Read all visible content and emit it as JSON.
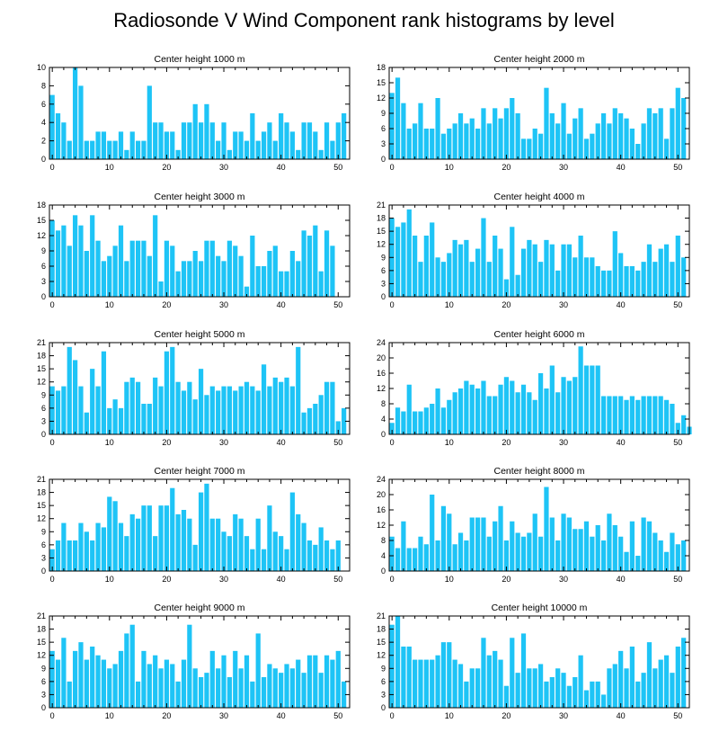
{
  "figure": {
    "title": "Radiosonde V Wind Component rank histograms by level",
    "bar_color": "#1ec4f6"
  },
  "chart_data": [
    {
      "type": "bar",
      "title": "Center height 1000 m",
      "xlim": [
        -0.5,
        52
      ],
      "xticks": [
        0,
        10,
        20,
        30,
        40,
        50
      ],
      "ylim": [
        0,
        10
      ],
      "yticks": [
        0,
        2,
        4,
        6,
        8,
        10
      ],
      "values": [
        7,
        5,
        4,
        2,
        10,
        8,
        2,
        2,
        3,
        3,
        2,
        2,
        3,
        1,
        3,
        2,
        2,
        8,
        4,
        4,
        3,
        3,
        1,
        4,
        4,
        6,
        4,
        6,
        4,
        2,
        4,
        1,
        3,
        3,
        2,
        5,
        2,
        3,
        4,
        2,
        5,
        4,
        3,
        1,
        4,
        4,
        3,
        1,
        4,
        2,
        4,
        5
      ]
    },
    {
      "type": "bar",
      "title": "Center height 2000 m",
      "xlim": [
        -0.5,
        52
      ],
      "xticks": [
        0,
        10,
        20,
        30,
        40,
        50
      ],
      "ylim": [
        0,
        18
      ],
      "yticks": [
        0,
        3,
        6,
        9,
        12,
        15,
        18
      ],
      "values": [
        13,
        16,
        11,
        6,
        7,
        11,
        6,
        6,
        12,
        5,
        6,
        7,
        9,
        7,
        8,
        6,
        10,
        7,
        10,
        8,
        10,
        12,
        9,
        4,
        4,
        6,
        5,
        14,
        9,
        7,
        11,
        5,
        8,
        10,
        4,
        5,
        7,
        9,
        7,
        10,
        9,
        8,
        6,
        3,
        7,
        10,
        9,
        10,
        4,
        10,
        14,
        12
      ]
    },
    {
      "type": "bar",
      "title": "Center height 3000 m",
      "xlim": [
        -0.5,
        52
      ],
      "xticks": [
        0,
        10,
        20,
        30,
        40,
        50
      ],
      "ylim": [
        0,
        18
      ],
      "yticks": [
        0,
        3,
        6,
        9,
        12,
        15,
        18
      ],
      "values": [
        15,
        13,
        14,
        10,
        16,
        14,
        9,
        16,
        11,
        7,
        8,
        10,
        14,
        7,
        11,
        11,
        11,
        8,
        16,
        3,
        11,
        10,
        5,
        7,
        7,
        9,
        7,
        11,
        11,
        8,
        7,
        11,
        10,
        8,
        2,
        12,
        6,
        6,
        9,
        10,
        5,
        5,
        9,
        7,
        13,
        12,
        14,
        5,
        13,
        10
      ]
    },
    {
      "type": "bar",
      "title": "Center height 4000 m",
      "xlim": [
        -0.5,
        52
      ],
      "xticks": [
        0,
        10,
        20,
        30,
        40,
        50
      ],
      "ylim": [
        0,
        21
      ],
      "yticks": [
        0,
        3,
        6,
        9,
        12,
        15,
        18,
        21
      ],
      "values": [
        18,
        16,
        17,
        20,
        14,
        8,
        14,
        17,
        9,
        8,
        10,
        13,
        12,
        13,
        8,
        11,
        18,
        8,
        14,
        11,
        4,
        16,
        5,
        11,
        13,
        12,
        8,
        13,
        12,
        6,
        12,
        12,
        9,
        14,
        9,
        9,
        7,
        6,
        6,
        15,
        10,
        7,
        7,
        6,
        8,
        12,
        8,
        11,
        12,
        8,
        14,
        9
      ]
    },
    {
      "type": "bar",
      "title": "Center height 5000 m",
      "xlim": [
        -0.5,
        52
      ],
      "xticks": [
        0,
        10,
        20,
        30,
        40,
        50
      ],
      "ylim": [
        0,
        21
      ],
      "yticks": [
        0,
        3,
        6,
        9,
        12,
        15,
        18,
        21
      ],
      "values": [
        11,
        10,
        11,
        20,
        17,
        11,
        5,
        15,
        11,
        19,
        6,
        8,
        6,
        12,
        13,
        12,
        7,
        7,
        13,
        11,
        19,
        20,
        12,
        10,
        12,
        8,
        15,
        9,
        11,
        10,
        11,
        11,
        10,
        11,
        12,
        11,
        10,
        16,
        11,
        13,
        12,
        13,
        11,
        20,
        5,
        6,
        7,
        9,
        12,
        12,
        3,
        6
      ]
    },
    {
      "type": "bar",
      "title": "Center height 6000 m",
      "xlim": [
        -0.5,
        52
      ],
      "xticks": [
        0,
        10,
        20,
        30,
        40,
        50
      ],
      "ylim": [
        0,
        24
      ],
      "yticks": [
        0,
        4,
        8,
        12,
        16,
        20,
        24
      ],
      "values": [
        3,
        7,
        6,
        13,
        6,
        6,
        7,
        8,
        12,
        7,
        9,
        11,
        12,
        14,
        13,
        12,
        14,
        10,
        10,
        13,
        15,
        14,
        11,
        13,
        11,
        9,
        16,
        12,
        18,
        11,
        15,
        14,
        15,
        23,
        18,
        18,
        18,
        10,
        10,
        10,
        10,
        9,
        10,
        9,
        10,
        10,
        10,
        10,
        9,
        8,
        3,
        5,
        2
      ]
    },
    {
      "type": "bar",
      "title": "Center height 7000 m",
      "xlim": [
        -0.5,
        52
      ],
      "xticks": [
        0,
        10,
        20,
        30,
        40,
        50
      ],
      "ylim": [
        0,
        21
      ],
      "yticks": [
        0,
        3,
        6,
        9,
        12,
        15,
        18,
        21
      ],
      "values": [
        5,
        7,
        11,
        7,
        7,
        11,
        9,
        7,
        11,
        10,
        17,
        16,
        11,
        8,
        13,
        12,
        15,
        15,
        8,
        15,
        15,
        19,
        13,
        14,
        12,
        6,
        18,
        20,
        12,
        12,
        9,
        8,
        13,
        12,
        8,
        5,
        12,
        5,
        15,
        9,
        8,
        5,
        18,
        13,
        11,
        7,
        6,
        10,
        7,
        5,
        7
      ]
    },
    {
      "type": "bar",
      "title": "Center height 8000 m",
      "xlim": [
        -0.5,
        52
      ],
      "xticks": [
        0,
        10,
        20,
        30,
        40,
        50
      ],
      "ylim": [
        0,
        24
      ],
      "yticks": [
        0,
        4,
        8,
        12,
        16,
        20,
        24
      ],
      "values": [
        9,
        6,
        13,
        6,
        6,
        9,
        7,
        20,
        8,
        17,
        15,
        7,
        10,
        8,
        14,
        14,
        14,
        9,
        13,
        17,
        8,
        13,
        10,
        9,
        10,
        15,
        9,
        22,
        14,
        8,
        15,
        14,
        11,
        11,
        13,
        9,
        12,
        8,
        15,
        12,
        9,
        5,
        13,
        4,
        14,
        13,
        10,
        8,
        5,
        10,
        7,
        8
      ]
    },
    {
      "type": "bar",
      "title": "Center height 9000 m",
      "xlim": [
        -0.5,
        52
      ],
      "xticks": [
        0,
        10,
        20,
        30,
        40,
        50
      ],
      "ylim": [
        0,
        21
      ],
      "yticks": [
        0,
        3,
        6,
        9,
        12,
        15,
        18,
        21
      ],
      "values": [
        13,
        11,
        16,
        6,
        13,
        15,
        11,
        14,
        12,
        11,
        9,
        10,
        13,
        17,
        19,
        6,
        13,
        10,
        12,
        9,
        11,
        10,
        6,
        11,
        19,
        9,
        7,
        8,
        13,
        9,
        12,
        7,
        13,
        9,
        12,
        6,
        17,
        7,
        10,
        9,
        8,
        10,
        9,
        11,
        8,
        12,
        12,
        8,
        12,
        11,
        13,
        6
      ]
    },
    {
      "type": "bar",
      "title": "Center height 10000 m",
      "xlim": [
        -0.5,
        52
      ],
      "xticks": [
        0,
        10,
        20,
        30,
        40,
        50
      ],
      "ylim": [
        0,
        21
      ],
      "yticks": [
        0,
        3,
        6,
        9,
        12,
        15,
        18,
        21
      ],
      "values": [
        19,
        21,
        14,
        14,
        11,
        11,
        11,
        11,
        12,
        15,
        15,
        11,
        10,
        6,
        9,
        9,
        16,
        12,
        13,
        11,
        5,
        16,
        8,
        17,
        9,
        9,
        10,
        6,
        7,
        9,
        8,
        5,
        7,
        12,
        4,
        6,
        6,
        3,
        9,
        10,
        13,
        9,
        14,
        6,
        8,
        15,
        9,
        11,
        12,
        8,
        14,
        16
      ]
    }
  ]
}
